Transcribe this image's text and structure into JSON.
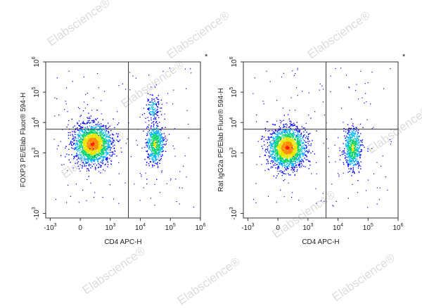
{
  "watermark": "Elabscience®",
  "panels": [
    {
      "star": "*",
      "xlabel": "CD4 APC-H",
      "ylabel": "FOXP3 PE/Elab Fluor® 594-H",
      "xticks": [
        {
          "base": "-10",
          "exp": "3",
          "v": -1000
        },
        {
          "base": "0",
          "exp": "",
          "v": 0
        },
        {
          "base": "10",
          "exp": "3",
          "v": 1000
        },
        {
          "base": "10",
          "exp": "4",
          "v": 10000
        },
        {
          "base": "10",
          "exp": "5",
          "v": 100000
        },
        {
          "base": "10",
          "exp": "6",
          "v": 1000000
        }
      ],
      "yticks": [
        {
          "base": "-10",
          "exp": "3",
          "v": -1000
        },
        {
          "base": "10",
          "exp": "3",
          "v": 1000
        },
        {
          "base": "10",
          "exp": "4",
          "v": 10000
        },
        {
          "base": "10",
          "exp": "5",
          "v": 100000
        },
        {
          "base": "10",
          "exp": "6",
          "v": 1000000
        }
      ]
    },
    {
      "star": "*",
      "xlabel": "CD4 APC-H",
      "ylabel": "Rat IgG2a PE/Elab Fluor® 594-H",
      "xticks": [
        {
          "base": "-10",
          "exp": "3",
          "v": -1000
        },
        {
          "base": "0",
          "exp": "",
          "v": 0
        },
        {
          "base": "10",
          "exp": "3",
          "v": 1000
        },
        {
          "base": "10",
          "exp": "4",
          "v": 10000
        },
        {
          "base": "10",
          "exp": "5",
          "v": 100000
        },
        {
          "base": "10",
          "exp": "6",
          "v": 1000000
        }
      ],
      "yticks": [
        {
          "base": "-10",
          "exp": "3",
          "v": -1000
        },
        {
          "base": "10",
          "exp": "3",
          "v": 1000
        },
        {
          "base": "10",
          "exp": "4",
          "v": 10000
        },
        {
          "base": "10",
          "exp": "5",
          "v": 100000
        },
        {
          "base": "10",
          "exp": "6",
          "v": 1000000
        }
      ]
    }
  ],
  "chart_data": [
    {
      "type": "scatter",
      "style": "pseudocolor density plot",
      "x_scale": "biexponential",
      "y_scale": "biexponential",
      "xlabel": "CD4 APC-H",
      "ylabel": "FOXP3 PE/Elab Fluor® 594-H",
      "xlim": [
        -1000,
        1000000
      ],
      "ylim": [
        -1000,
        1000000
      ],
      "quadrant_gate": {
        "x": 4000,
        "y": 6000
      },
      "populations": [
        {
          "x": 400,
          "y": 2000,
          "density": "highest"
        },
        {
          "x": 30000,
          "y": 2000,
          "density": "medium"
        },
        {
          "x": 25000,
          "y": 30000,
          "density": "low"
        }
      ],
      "colormap": [
        "#0000ff",
        "#00b4ff",
        "#00d26e",
        "#e6e600",
        "#ff8c00",
        "#ff1e00"
      ]
    },
    {
      "type": "scatter",
      "style": "pseudocolor density plot",
      "x_scale": "biexponential",
      "y_scale": "biexponential",
      "xlabel": "CD4 APC-H",
      "ylabel": "Rat IgG2a PE/Elab Fluor® 594-H",
      "xlim": [
        -1000,
        1000000
      ],
      "ylim": [
        -1000,
        1000000
      ],
      "quadrant_gate": {
        "x": 4000,
        "y": 6000
      },
      "populations": [
        {
          "x": 300,
          "y": 1500,
          "density": "highest"
        },
        {
          "x": 30000,
          "y": 1500,
          "density": "medium"
        }
      ],
      "colormap": [
        "#0000ff",
        "#00b4ff",
        "#00d26e",
        "#e6e600",
        "#ff8c00",
        "#ff1e00"
      ]
    }
  ]
}
